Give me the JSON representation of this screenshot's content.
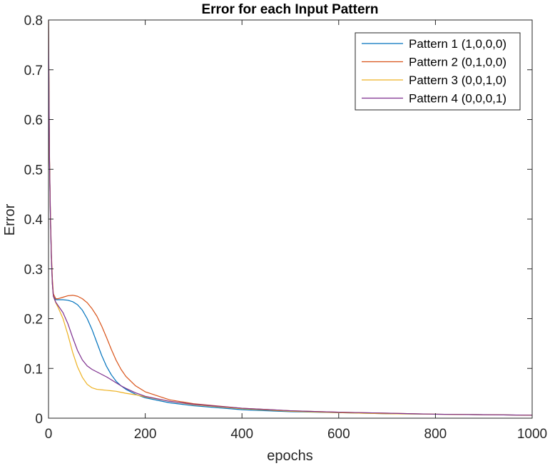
{
  "chart_data": {
    "type": "line",
    "title": "Error for each Input Pattern",
    "xlabel": "epochs",
    "ylabel": "Error",
    "xlim": [
      0,
      1000
    ],
    "ylim": [
      0,
      0.8
    ],
    "xticks": [
      0,
      200,
      400,
      600,
      800,
      1000
    ],
    "yticks": [
      0,
      0.1,
      0.2,
      0.3,
      0.4,
      0.5,
      0.6,
      0.7,
      0.8
    ],
    "grid": false,
    "box": true,
    "legend_position": "top-right",
    "series": [
      {
        "name": "Pattern 1 (1,0,0,0)",
        "color": "#0072BD",
        "x": [
          0,
          1,
          2,
          4,
          6,
          8,
          10,
          15,
          20,
          30,
          40,
          50,
          60,
          70,
          80,
          90,
          100,
          110,
          120,
          130,
          140,
          150,
          160,
          180,
          200,
          250,
          300,
          400,
          500,
          600,
          700,
          800,
          900,
          1000
        ],
        "y": [
          0.8,
          0.65,
          0.52,
          0.4,
          0.32,
          0.27,
          0.245,
          0.238,
          0.238,
          0.238,
          0.237,
          0.234,
          0.228,
          0.217,
          0.2,
          0.178,
          0.152,
          0.126,
          0.104,
          0.087,
          0.074,
          0.065,
          0.058,
          0.048,
          0.041,
          0.031,
          0.025,
          0.017,
          0.013,
          0.011,
          0.009,
          0.008,
          0.007,
          0.006
        ]
      },
      {
        "name": "Pattern 2 (0,1,0,0)",
        "color": "#D95319",
        "x": [
          0,
          1,
          2,
          4,
          6,
          8,
          10,
          15,
          20,
          30,
          40,
          50,
          60,
          70,
          80,
          90,
          100,
          110,
          120,
          130,
          140,
          150,
          160,
          180,
          200,
          250,
          300,
          400,
          500,
          600,
          700,
          800,
          900,
          1000
        ],
        "y": [
          0.8,
          0.66,
          0.53,
          0.41,
          0.33,
          0.28,
          0.25,
          0.24,
          0.24,
          0.243,
          0.246,
          0.247,
          0.245,
          0.24,
          0.232,
          0.22,
          0.205,
          0.185,
          0.162,
          0.138,
          0.116,
          0.098,
          0.084,
          0.065,
          0.053,
          0.037,
          0.029,
          0.02,
          0.015,
          0.012,
          0.01,
          0.008,
          0.007,
          0.006
        ]
      },
      {
        "name": "Pattern 3 (0,0,1,0)",
        "color": "#EDB120",
        "x": [
          0,
          1,
          2,
          4,
          6,
          8,
          10,
          15,
          20,
          30,
          40,
          50,
          60,
          70,
          80,
          90,
          100,
          110,
          120,
          130,
          140,
          150,
          160,
          180,
          200,
          250,
          300,
          400,
          500,
          600,
          700,
          800,
          900,
          1000
        ],
        "y": [
          0.8,
          0.65,
          0.52,
          0.4,
          0.32,
          0.27,
          0.245,
          0.232,
          0.222,
          0.2,
          0.168,
          0.132,
          0.103,
          0.082,
          0.068,
          0.061,
          0.058,
          0.057,
          0.056,
          0.055,
          0.054,
          0.052,
          0.05,
          0.047,
          0.043,
          0.034,
          0.027,
          0.019,
          0.014,
          0.011,
          0.009,
          0.008,
          0.007,
          0.006
        ]
      },
      {
        "name": "Pattern 4 (0,0,0,1)",
        "color": "#7E2F8E",
        "x": [
          0,
          1,
          2,
          4,
          6,
          8,
          10,
          15,
          20,
          30,
          40,
          50,
          60,
          70,
          80,
          90,
          100,
          110,
          120,
          130,
          140,
          150,
          160,
          180,
          200,
          250,
          300,
          400,
          500,
          600,
          700,
          800,
          900,
          1000
        ],
        "y": [
          0.8,
          0.65,
          0.52,
          0.4,
          0.32,
          0.27,
          0.245,
          0.233,
          0.226,
          0.212,
          0.19,
          0.162,
          0.136,
          0.117,
          0.105,
          0.098,
          0.093,
          0.088,
          0.083,
          0.077,
          0.071,
          0.065,
          0.06,
          0.051,
          0.044,
          0.034,
          0.028,
          0.02,
          0.015,
          0.012,
          0.01,
          0.008,
          0.007,
          0.006
        ]
      }
    ]
  }
}
